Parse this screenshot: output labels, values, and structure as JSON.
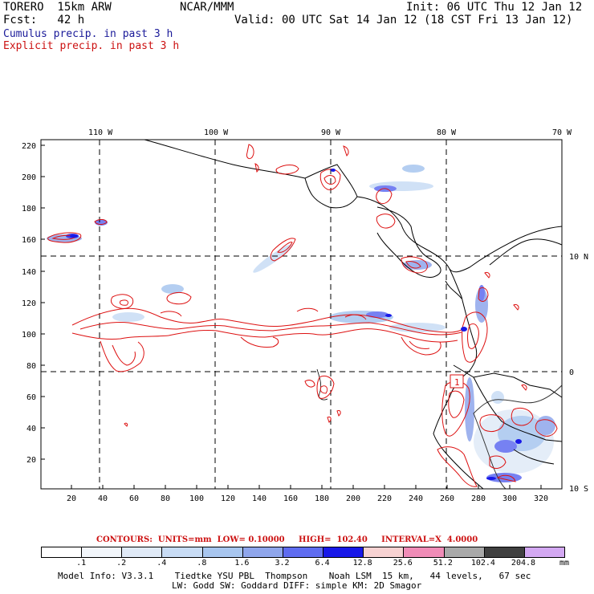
{
  "header": {
    "model_run": "TORERO  15km ARW",
    "org": "NCAR/MMM",
    "init": "Init: 06 UTC Thu 12 Jan 12",
    "fcst": "Fcst:   42 h",
    "valid": "Valid: 00 UTC Sat 14 Jan 12 (18 CST Fri 13 Jan 12)",
    "cumulus": "Cumulus precip. in past 3 h",
    "explicit": "Explicit precip. in past 3 h"
  },
  "top_lon_labels": [
    "110 W",
    "100 W",
    "90 W",
    "80 W",
    "70 W"
  ],
  "right_lat_labels": [
    "10 N",
    "0",
    "10 S"
  ],
  "y_ticks": [
    "220",
    "200",
    "180",
    "160",
    "140",
    "120",
    "100",
    "80",
    "60",
    "40",
    "20"
  ],
  "x_ticks": [
    "20",
    "40",
    "60",
    "80",
    "100",
    "120",
    "140",
    "160",
    "180",
    "200",
    "220",
    "240",
    "260",
    "280",
    "300",
    "320"
  ],
  "point_label": "1",
  "contours_line": "CONTOURS:  UNITS=mm  LOW= 0.10000     HIGH=  102.40     INTERVAL=X  4.0000",
  "colorbar": {
    "labels": [
      ".1",
      ".2",
      ".4",
      ".8",
      "1.6",
      "3.2",
      "6.4",
      "12.8",
      "25.6",
      "51.2",
      "102.4",
      "204.8"
    ],
    "unit": "mm",
    "colors": [
      "#ffffff",
      "#f2f6fb",
      "#e0eaf7",
      "#c8dcf5",
      "#a8c6ef",
      "#8fa6ec",
      "#5f6cf0",
      "#1818e8",
      "#f7d2d2",
      "#f08cb7",
      "#a9a9a9",
      "#404040",
      "#d3a8f2"
    ]
  },
  "footer": {
    "line1": "Model Info: V3.3.1    Tiedtke YSU PBL  Thompson    Noah LSM  15 km,   44 levels,   67 sec",
    "line2": "LW: Godd SW: Goddard DIFF: simple KM: 2D Smagor"
  }
}
